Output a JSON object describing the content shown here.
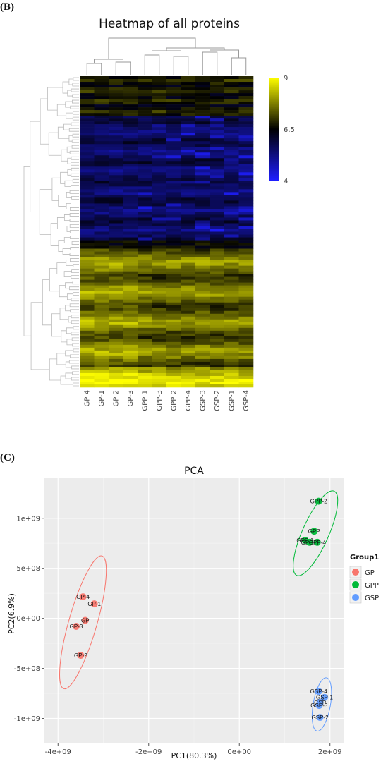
{
  "panel_b_label": "(B)",
  "panel_c_label": "(C)",
  "colors": {
    "low": "#1e1eff",
    "mid": "#000000",
    "high": "#ffff00",
    "GP": "#f8766d",
    "GPP": "#00ba38",
    "GSP": "#619cff"
  },
  "chart_data": [
    {
      "type": "heatmap",
      "title": "Heatmap of all proteins",
      "columns": [
        "GP-4",
        "GP-1",
        "GP-2",
        "GP-3",
        "GPP-1",
        "GPP-3",
        "GPP-2",
        "GPP-4",
        "GSP-3",
        "GSP-2",
        "GSP-1",
        "GSP-4"
      ],
      "colorbar": {
        "ticks": [
          "9",
          "6.5",
          "4"
        ],
        "min": 4,
        "max": 9
      },
      "dendrogram": {
        "rows": true,
        "columns": true
      }
    },
    {
      "type": "scatter",
      "title": "PCA",
      "xlabel": "PC1(80.3%)",
      "ylabel": "PC2(6.9%)",
      "xlim": [
        -4300000000.0,
        2300000000.0
      ],
      "ylim": [
        -1250000000.0,
        1400000000.0
      ],
      "xticks": [
        {
          "v": -4000000000.0,
          "label": "-4e+09"
        },
        {
          "v": -2000000000.0,
          "label": "-2e+09"
        },
        {
          "v": 0,
          "label": "0e+00"
        },
        {
          "v": 2000000000.0,
          "label": "2e+09"
        }
      ],
      "yticks": [
        {
          "v": 1000000000.0,
          "label": "1e+09"
        },
        {
          "v": 500000000.0,
          "label": "5e+08"
        },
        {
          "v": 0,
          "label": "0e+00"
        },
        {
          "v": -500000000.0,
          "label": "-5e+08"
        },
        {
          "v": -1000000000.0,
          "label": "-1e+09"
        }
      ],
      "legend": {
        "title": "Group1",
        "position": "right",
        "entries": [
          "GP",
          "GPP",
          "GSP"
        ]
      },
      "grid": true,
      "points": [
        {
          "label": "GP-4",
          "group": "GP",
          "x": -3450000000.0,
          "y": 215000000.0
        },
        {
          "label": "GP-1",
          "group": "GP",
          "x": -3200000000.0,
          "y": 145000000.0
        },
        {
          "label": "GP",
          "group": "GP",
          "x": -3400000000.0,
          "y": -20000000.0
        },
        {
          "label": "GP-3",
          "group": "GP",
          "x": -3600000000.0,
          "y": -80000000.0
        },
        {
          "label": "GP-2",
          "group": "GP",
          "x": -3500000000.0,
          "y": -370000000.0
        },
        {
          "label": "GPP-2",
          "group": "GPP",
          "x": 1750000000.0,
          "y": 1170000000.0
        },
        {
          "label": "GPP",
          "group": "GPP",
          "x": 1650000000.0,
          "y": 870000000.0
        },
        {
          "label": "GPP-1",
          "group": "GPP",
          "x": 1450000000.0,
          "y": 780000000.0
        },
        {
          "label": "GPP-3",
          "group": "GPP",
          "x": 1550000000.0,
          "y": 760000000.0
        },
        {
          "label": "GPP-4",
          "group": "GPP",
          "x": 1720000000.0,
          "y": 760000000.0
        },
        {
          "label": "GSP-4",
          "group": "GSP",
          "x": 1750000000.0,
          "y": -730000000.0
        },
        {
          "label": "GSP-1",
          "group": "GSP",
          "x": 1880000000.0,
          "y": -790000000.0
        },
        {
          "label": "GSP",
          "group": "GSP",
          "x": 1780000000.0,
          "y": -840000000.0
        },
        {
          "label": "GSP-3",
          "group": "GSP",
          "x": 1760000000.0,
          "y": -870000000.0
        },
        {
          "label": "GSP-2",
          "group": "GSP",
          "x": 1780000000.0,
          "y": -990000000.0
        }
      ],
      "ellipses": [
        {
          "group": "GP",
          "cx": -3450000000.0,
          "cy": -40000000.0,
          "rx": 310000000.0,
          "ry": 690000000.0,
          "angle": 16
        },
        {
          "group": "GPP",
          "cx": 1680000000.0,
          "cy": 850000000.0,
          "rx": 290000000.0,
          "ry": 460000000.0,
          "angle": 24
        },
        {
          "group": "GSP",
          "cx": 1820000000.0,
          "cy": -860000000.0,
          "rx": 190000000.0,
          "ry": 270000000.0,
          "angle": 10
        }
      ]
    }
  ]
}
